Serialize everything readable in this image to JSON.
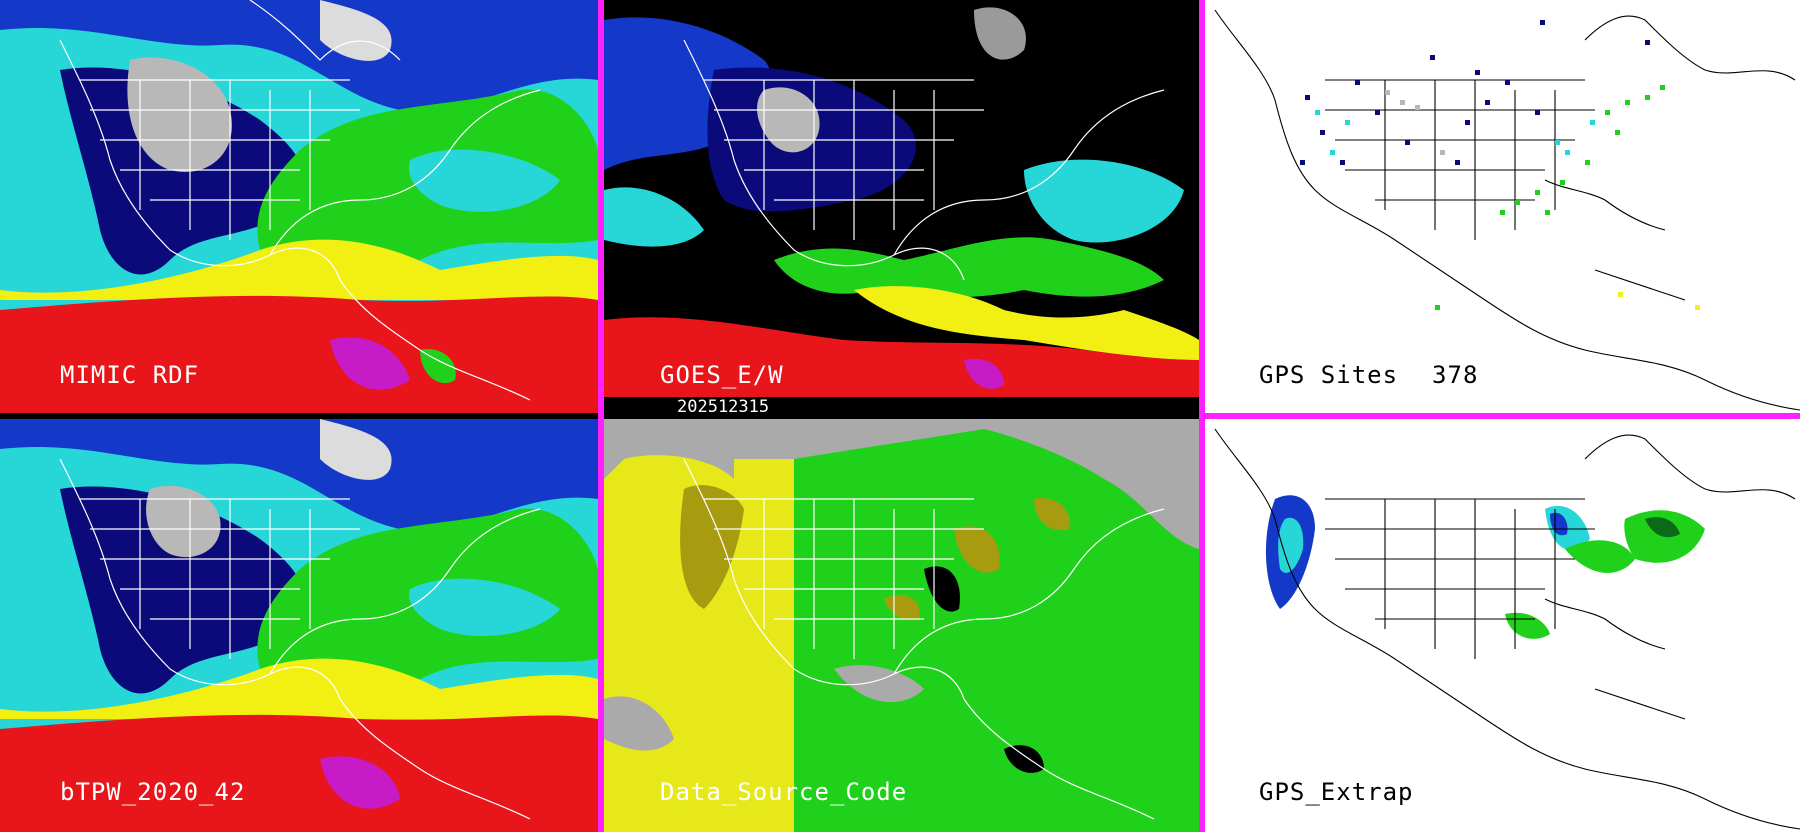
{
  "panels": {
    "top_left": {
      "label": "MIMIC RDF"
    },
    "top_middle": {
      "label": "GOES_E/W"
    },
    "top_right": {
      "label_name": "GPS Sites",
      "label_count": "378"
    },
    "bottom_left": {
      "label": "bTPW_2020_42"
    },
    "bottom_middle": {
      "label": "Data_Source_Code"
    },
    "bottom_right": {
      "label": "GPS_Extrap"
    }
  },
  "timestamp": "202512315",
  "colors": {
    "divider": "#ff20ff",
    "tpw_red": "#e8151b",
    "tpw_yellow": "#f2ef13",
    "tpw_green": "#1fd11a",
    "tpw_cyan": "#27d6d6",
    "tpw_blue": "#1438c8",
    "tpw_navy": "#0a0a7a",
    "gray": "#aaaaaa",
    "source_yellow": "#e7e81a",
    "source_olive": "#a79b10"
  }
}
